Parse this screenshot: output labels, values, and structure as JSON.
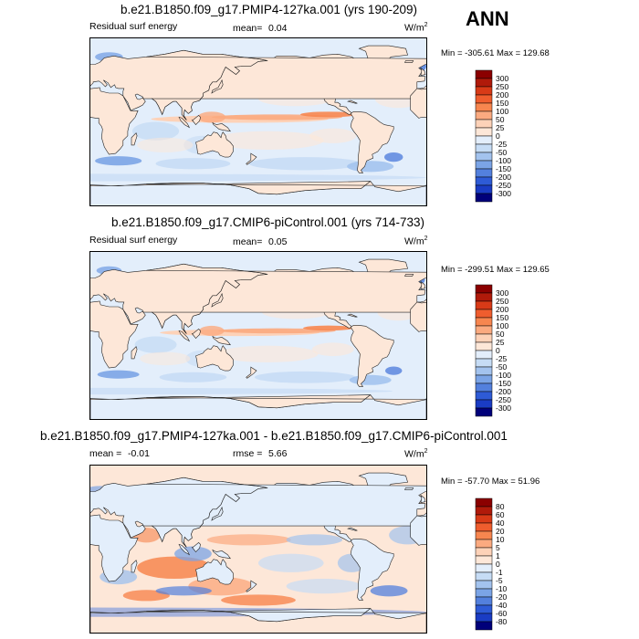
{
  "season": "ANN",
  "chart_data": [
    {
      "type": "heatmap",
      "title": "b.e21.B1850.f09_g17.PMIP4-127ka.001 (yrs 190-209)",
      "variable": "Residual surf energy",
      "stat_label": "mean=",
      "stat_value": "0.04",
      "units": "W/m",
      "units_sup": "2",
      "minmax": "Min = -305.61 Max = 129.68",
      "levels": [
        "300",
        "250",
        "200",
        "150",
        "100",
        "50",
        "25",
        "0",
        "-25",
        "-50",
        "-100",
        "-150",
        "-200",
        "-250",
        "-300"
      ],
      "colors": [
        "#8b0000",
        "#b01a0a",
        "#d83a17",
        "#ef5d2e",
        "#f7864f",
        "#fbaa80",
        "#fdd2b8",
        "#fde7d8",
        "#e3eefb",
        "#c6dcf5",
        "#a3c3ee",
        "#7ba4e6",
        "#5380dd",
        "#2e5bd6",
        "#1a3cc4",
        "#00007a"
      ]
    },
    {
      "type": "heatmap",
      "title": "b.e21.B1850.f09_g17.CMIP6-piControl.001 (yrs 714-733)",
      "variable": "Residual surf energy",
      "stat_label": "mean=",
      "stat_value": "0.05",
      "units": "W/m",
      "units_sup": "2",
      "minmax": "Min = -299.51 Max = 129.65",
      "levels": [
        "300",
        "250",
        "200",
        "150",
        "100",
        "50",
        "25",
        "0",
        "-25",
        "-50",
        "-100",
        "-150",
        "-200",
        "-250",
        "-300"
      ],
      "colors": [
        "#8b0000",
        "#b01a0a",
        "#d83a17",
        "#ef5d2e",
        "#f7864f",
        "#fbaa80",
        "#fdd2b8",
        "#fde7d8",
        "#e3eefb",
        "#c6dcf5",
        "#a3c3ee",
        "#7ba4e6",
        "#5380dd",
        "#2e5bd6",
        "#1a3cc4",
        "#00007a"
      ]
    },
    {
      "type": "heatmap",
      "title": "b.e21.B1850.f09_g17.PMIP4-127ka.001 - b.e21.B1850.f09_g17.CMIP6-piControl.001",
      "stat_label": "mean =",
      "stat_value": "-0.01",
      "stat2_label": "rmse =",
      "stat2_value": "5.66",
      "units": "W/m",
      "units_sup": "2",
      "minmax": "Min = -57.70 Max =  51.96",
      "levels": [
        "80",
        "60",
        "40",
        "20",
        "10",
        "5",
        "1",
        "0",
        "-1",
        "-5",
        "-10",
        "-20",
        "-40",
        "-60",
        "-80"
      ],
      "colors": [
        "#8b0000",
        "#b01a0a",
        "#d83a17",
        "#ef5d2e",
        "#f7864f",
        "#fbaa80",
        "#fdd2b8",
        "#fde7d8",
        "#e3eefb",
        "#c6dcf5",
        "#a3c3ee",
        "#7ba4e6",
        "#5380dd",
        "#2e5bd6",
        "#1a3cc4",
        "#00007a"
      ]
    }
  ]
}
